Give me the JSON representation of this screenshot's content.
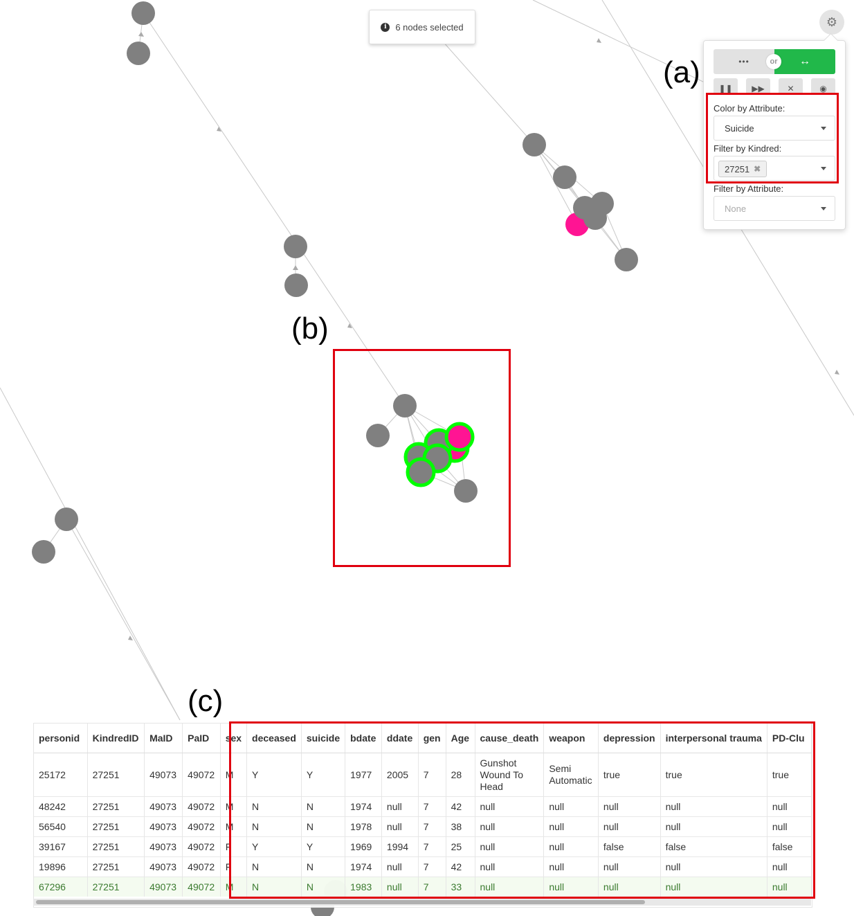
{
  "toast": {
    "text": "6 nodes selected",
    "icon": "info-icon"
  },
  "panel": {
    "toggle_or": "or",
    "color_label": "Color by Attribute:",
    "color_value": "Suicide",
    "kindred_label": "Filter by Kindred:",
    "kindred_chip": "27251",
    "attr_label": "Filter by Attribute:",
    "attr_value": "None"
  },
  "annotations": {
    "a": "(a)",
    "b": "(b)",
    "c": "(c)"
  },
  "colors": {
    "node": "#808080",
    "highlight": "#ff1493",
    "selected_ring": "#00ff00",
    "edge": "#c8c8c8",
    "annotation_box": "#e0000f"
  },
  "table": {
    "columns": [
      "personid",
      "KindredID",
      "MaID",
      "PaID",
      "sex",
      "deceased",
      "suicide",
      "bdate",
      "ddate",
      "gen",
      "Age",
      "cause_death",
      "weapon",
      "depression",
      "interpersonal trauma",
      "PD-Clu"
    ],
    "rows": [
      [
        "25172",
        "27251",
        "49073",
        "49072",
        "M",
        "Y",
        "Y",
        "1977",
        "2005",
        "7",
        "28",
        "Gunshot Wound To Head",
        "Semi Automatic",
        "true",
        "true",
        "true"
      ],
      [
        "48242",
        "27251",
        "49073",
        "49072",
        "M",
        "N",
        "N",
        "1974",
        "null",
        "7",
        "42",
        "null",
        "null",
        "null",
        "null",
        "null"
      ],
      [
        "56540",
        "27251",
        "49073",
        "49072",
        "M",
        "N",
        "N",
        "1978",
        "null",
        "7",
        "38",
        "null",
        "null",
        "null",
        "null",
        "null"
      ],
      [
        "39167",
        "27251",
        "49073",
        "49072",
        "F",
        "Y",
        "Y",
        "1969",
        "1994",
        "7",
        "25",
        "null",
        "null",
        "false",
        "false",
        "false"
      ],
      [
        "19896",
        "27251",
        "49073",
        "49072",
        "F",
        "N",
        "N",
        "1974",
        "null",
        "7",
        "42",
        "null",
        "null",
        "null",
        "null",
        "null"
      ],
      [
        "67296",
        "27251",
        "49073",
        "49072",
        "M",
        "N",
        "N",
        "1983",
        "null",
        "7",
        "33",
        "null",
        "null",
        "null",
        "null",
        "null"
      ]
    ]
  }
}
